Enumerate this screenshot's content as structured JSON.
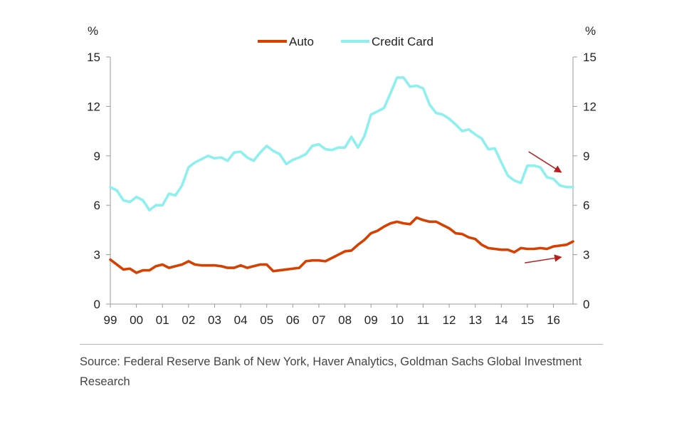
{
  "chart_data": {
    "type": "line",
    "title": "",
    "xlabel": "",
    "left_unit": "%",
    "right_unit": "%",
    "ylim": [
      0,
      15
    ],
    "yticks": [
      0,
      3,
      6,
      9,
      12,
      15
    ],
    "xlim": [
      1999,
      2016.75
    ],
    "x_tick_labels": [
      {
        "x": 1999,
        "label": "99"
      },
      {
        "x": 2000,
        "label": "00"
      },
      {
        "x": 2001,
        "label": "01"
      },
      {
        "x": 2002,
        "label": "02"
      },
      {
        "x": 2003,
        "label": "03"
      },
      {
        "x": 2004,
        "label": "04"
      },
      {
        "x": 2005,
        "label": "05"
      },
      {
        "x": 2006,
        "label": "06"
      },
      {
        "x": 2007,
        "label": "07"
      },
      {
        "x": 2008,
        "label": "08"
      },
      {
        "x": 2009,
        "label": "09"
      },
      {
        "x": 2010,
        "label": "10"
      },
      {
        "x": 2011,
        "label": "11"
      },
      {
        "x": 2012,
        "label": "12"
      },
      {
        "x": 2013,
        "label": "13"
      },
      {
        "x": 2014,
        "label": "14"
      },
      {
        "x": 2015,
        "label": "15"
      },
      {
        "x": 2016,
        "label": "16"
      }
    ],
    "legend_position": "top-center",
    "grid": false,
    "series": [
      {
        "name": "Auto",
        "color": "#d64000",
        "x": [
          1999.0,
          1999.25,
          1999.5,
          1999.75,
          2000.0,
          2000.25,
          2000.5,
          2000.75,
          2001.0,
          2001.25,
          2001.5,
          2001.75,
          2002.0,
          2002.25,
          2002.5,
          2002.75,
          2003.0,
          2003.25,
          2003.5,
          2003.75,
          2004.0,
          2004.25,
          2004.5,
          2004.75,
          2005.0,
          2005.25,
          2005.5,
          2005.75,
          2006.0,
          2006.25,
          2006.5,
          2006.75,
          2007.0,
          2007.25,
          2007.5,
          2007.75,
          2008.0,
          2008.25,
          2008.5,
          2008.75,
          2009.0,
          2009.25,
          2009.5,
          2009.75,
          2010.0,
          2010.25,
          2010.5,
          2010.75,
          2011.0,
          2011.25,
          2011.5,
          2011.75,
          2012.0,
          2012.25,
          2012.5,
          2012.75,
          2013.0,
          2013.25,
          2013.5,
          2013.75,
          2014.0,
          2014.25,
          2014.5,
          2014.75,
          2015.0,
          2015.25,
          2015.5,
          2015.75,
          2016.0,
          2016.25,
          2016.5,
          2016.75
        ],
        "values": [
          2.7,
          2.4,
          2.1,
          2.15,
          1.9,
          2.05,
          2.05,
          2.3,
          2.4,
          2.2,
          2.3,
          2.4,
          2.6,
          2.4,
          2.35,
          2.35,
          2.35,
          2.3,
          2.2,
          2.2,
          2.35,
          2.2,
          2.3,
          2.4,
          2.4,
          2.0,
          2.05,
          2.1,
          2.15,
          2.2,
          2.6,
          2.65,
          2.65,
          2.6,
          2.8,
          3.0,
          3.2,
          3.25,
          3.6,
          3.9,
          4.3,
          4.45,
          4.7,
          4.9,
          5.0,
          4.9,
          4.85,
          5.25,
          5.1,
          5.0,
          5.0,
          4.8,
          4.6,
          4.3,
          4.25,
          4.05,
          3.95,
          3.6,
          3.4,
          3.35,
          3.3,
          3.3,
          3.15,
          3.4,
          3.35,
          3.35,
          3.4,
          3.35,
          3.5,
          3.55,
          3.6,
          3.8
        ]
      },
      {
        "name": "Credit Card",
        "color": "#8ef0ee",
        "x": [
          1999.0,
          1999.25,
          1999.5,
          1999.75,
          2000.0,
          2000.25,
          2000.5,
          2000.75,
          2001.0,
          2001.25,
          2001.5,
          2001.75,
          2002.0,
          2002.25,
          2002.5,
          2002.75,
          2003.0,
          2003.25,
          2003.5,
          2003.75,
          2004.0,
          2004.25,
          2004.5,
          2004.75,
          2005.0,
          2005.25,
          2005.5,
          2005.75,
          2006.0,
          2006.25,
          2006.5,
          2006.75,
          2007.0,
          2007.25,
          2007.5,
          2007.75,
          2008.0,
          2008.25,
          2008.5,
          2008.75,
          2009.0,
          2009.25,
          2009.5,
          2009.75,
          2010.0,
          2010.25,
          2010.5,
          2010.75,
          2011.0,
          2011.25,
          2011.5,
          2011.75,
          2012.0,
          2012.25,
          2012.5,
          2012.75,
          2013.0,
          2013.25,
          2013.5,
          2013.75,
          2014.0,
          2014.25,
          2014.5,
          2014.75,
          2015.0,
          2015.25,
          2015.5,
          2015.75,
          2016.0,
          2016.25,
          2016.5,
          2016.75
        ],
        "values": [
          7.1,
          6.9,
          6.3,
          6.2,
          6.5,
          6.3,
          5.7,
          6.0,
          6.0,
          6.7,
          6.6,
          7.2,
          8.3,
          8.6,
          8.8,
          9.0,
          8.85,
          8.9,
          8.7,
          9.2,
          9.25,
          8.9,
          8.7,
          9.2,
          9.6,
          9.3,
          9.1,
          8.5,
          8.75,
          8.9,
          9.1,
          9.6,
          9.7,
          9.4,
          9.35,
          9.5,
          9.5,
          10.15,
          9.5,
          10.2,
          11.5,
          11.7,
          11.9,
          12.8,
          13.75,
          13.75,
          13.2,
          13.25,
          13.1,
          12.1,
          11.6,
          11.5,
          11.25,
          10.9,
          10.5,
          10.6,
          10.3,
          10.05,
          9.4,
          9.45,
          8.6,
          7.8,
          7.5,
          7.35,
          8.4,
          8.4,
          8.3,
          7.7,
          7.6,
          7.2,
          7.1,
          7.1
        ]
      }
    ],
    "annotations": [
      {
        "type": "arrow",
        "color": "#b5201f",
        "from": [
          2015.05,
          9.25
        ],
        "to": [
          2016.3,
          8.0
        ]
      },
      {
        "type": "arrow",
        "color": "#b5201f",
        "from": [
          2014.9,
          2.5
        ],
        "to": [
          2016.3,
          2.85
        ]
      }
    ]
  },
  "source_text": "Source: Federal Reserve Bank of New York, Haver Analytics, Goldman Sachs Global Investment Research"
}
